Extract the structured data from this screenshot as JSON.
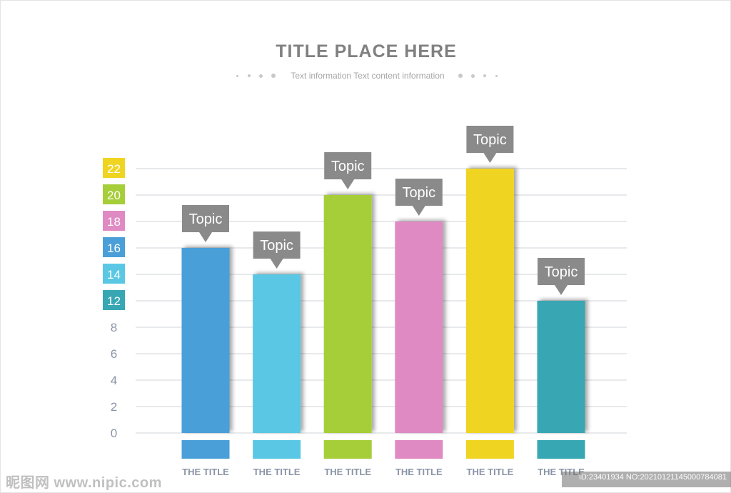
{
  "header": {
    "title": "TITLE PLACE HERE",
    "subtitle": "Text information  Text content information"
  },
  "chart_data": {
    "type": "bar",
    "categories": [
      "THE TITLE",
      "THE TITLE",
      "THE TITLE",
      "THE TITLE",
      "THE TITLE",
      "THE TITLE"
    ],
    "values": [
      16,
      14,
      20,
      18,
      22,
      12
    ],
    "callouts": [
      "Topic",
      "Topic",
      "Topic",
      "Topic",
      "Topic",
      "Topic"
    ],
    "bar_colors": [
      "#4a9fd8",
      "#5ac8e4",
      "#a6ce39",
      "#e08ac4",
      "#f0d422",
      "#37a7b3"
    ],
    "y_ticks": [
      "0",
      "2",
      "4",
      "6",
      "8",
      "12",
      "14",
      "16",
      "18",
      "20",
      "22"
    ],
    "y_tick_colors": {
      "12": "#37a7b3",
      "14": "#5ac8e4",
      "16": "#4a9fd8",
      "18": "#e08ac4",
      "20": "#a6ce39",
      "22": "#f0d422"
    },
    "grid": true,
    "legend": "none",
    "title": "TITLE PLACE HERE",
    "xlabel": "",
    "ylabel": ""
  },
  "watermark": {
    "left": "昵图网 www.nipic.com",
    "right": "ID:23401934 NO:20210121145000784081"
  },
  "colors": {
    "title": "#808080",
    "axis_text": "#8a94a6",
    "callout": "#8a8a8a",
    "grid": "#cfd3d8"
  }
}
